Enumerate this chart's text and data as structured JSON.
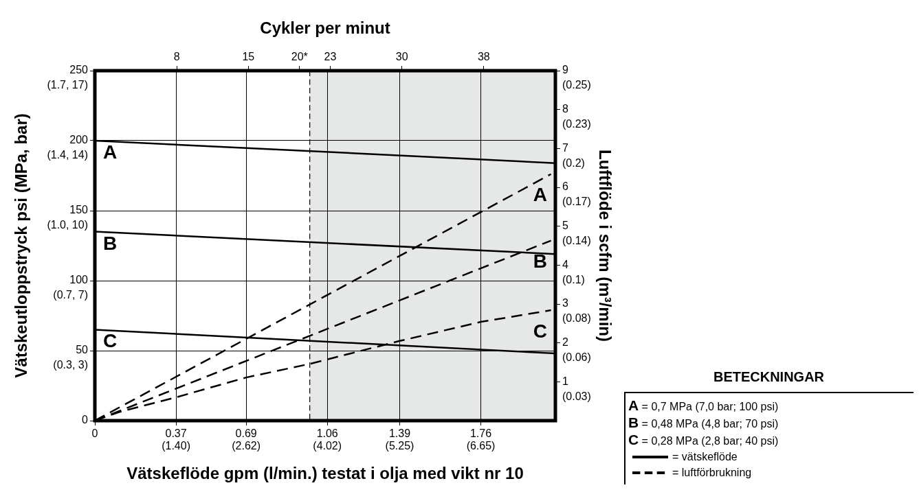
{
  "chart_data": {
    "type": "line",
    "x2label": "Cykler per minut",
    "xlabel": "Vätskeflöde gpm (l/min.) testat i olja med vikt nr 10",
    "ylabel": "Vätskeutloppstryck psi (MPa, bar)",
    "y2label": "Luftflöde i scfm (m³/min)",
    "legend_title": "BETECKNINGAR",
    "annotations": [
      "A = 0,7 MPa (7,0 bar; 100 psi)",
      "B = 0,48 MPa (4,8 bar; 70 psi)",
      "C = 0,28 MPa (2,8 bar; 40 psi)",
      "= vätskeflöde",
      "= luftförbrukning",
      "(1.40)",
      "(2.62)",
      "(4.02)",
      "(5.25)",
      "(6.65)",
      "(0.3, 3)",
      "(0.7, 7)",
      "(1.0, 10)",
      "(1.4, 14)",
      "(1.7, 17)",
      "(0.03)",
      "(0.06)",
      "(0.08)",
      "(0.1)",
      "(0.14)",
      "(0.17)",
      "(0.2)",
      "(0.23)",
      "(0.25)"
    ],
    "xlim": [
      0,
      2.1
    ],
    "xticks": [
      0,
      0.37,
      0.69,
      1.06,
      1.39,
      1.76
    ],
    "x2lim": [
      0,
      45
    ],
    "x2ticks": [
      8,
      15,
      {
        "value": 20,
        "label": "20*"
      },
      23,
      30,
      38
    ],
    "ylim": [
      0,
      250
    ],
    "yticks": [
      0,
      50,
      100,
      150,
      200,
      250
    ],
    "y2lim": [
      0,
      9
    ],
    "y2ticks": [
      1,
      2,
      3,
      4,
      5,
      6,
      7,
      8,
      9
    ],
    "grid": true,
    "legend": false,
    "ref_lines": [
      {
        "axis": "x",
        "value": 0.98,
        "line_style": "dashed",
        "color": "#000000"
      }
    ],
    "bands": [
      {
        "axis": "x",
        "from": 0.98,
        "to": 2.1,
        "color": "#e6e7e7"
      }
    ],
    "series": [
      {
        "name": "A",
        "color": "#000000",
        "line_style": "solid",
        "x": [
          0,
          2.1
        ],
        "values": [
          200,
          184
        ]
      },
      {
        "name": "B",
        "color": "#000000",
        "line_style": "solid",
        "x": [
          0,
          2.1
        ],
        "values": [
          135,
          119
        ]
      },
      {
        "name": "C",
        "color": "#000000",
        "line_style": "solid",
        "x": [
          0,
          2.1
        ],
        "values": [
          65,
          48
        ]
      },
      {
        "name": "A",
        "color": "#000000",
        "line_style": "dashed",
        "axis": "y2",
        "x": [
          0,
          2.08
        ],
        "values": [
          0,
          6.34
        ]
      },
      {
        "name": "B",
        "color": "#000000",
        "line_style": "dashed",
        "axis": "y2",
        "x": [
          0,
          2.08
        ],
        "values": [
          0,
          4.63
        ]
      },
      {
        "name": "C",
        "color": "#000000",
        "line_style": "dashed",
        "axis": "y2",
        "x": [
          0,
          0.11,
          0.37,
          0.69,
          0.98,
          1.39,
          1.76,
          2.08
        ],
        "values": [
          0,
          0.22,
          0.6,
          1.11,
          1.46,
          2.05,
          2.54,
          2.84
        ]
      }
    ]
  }
}
